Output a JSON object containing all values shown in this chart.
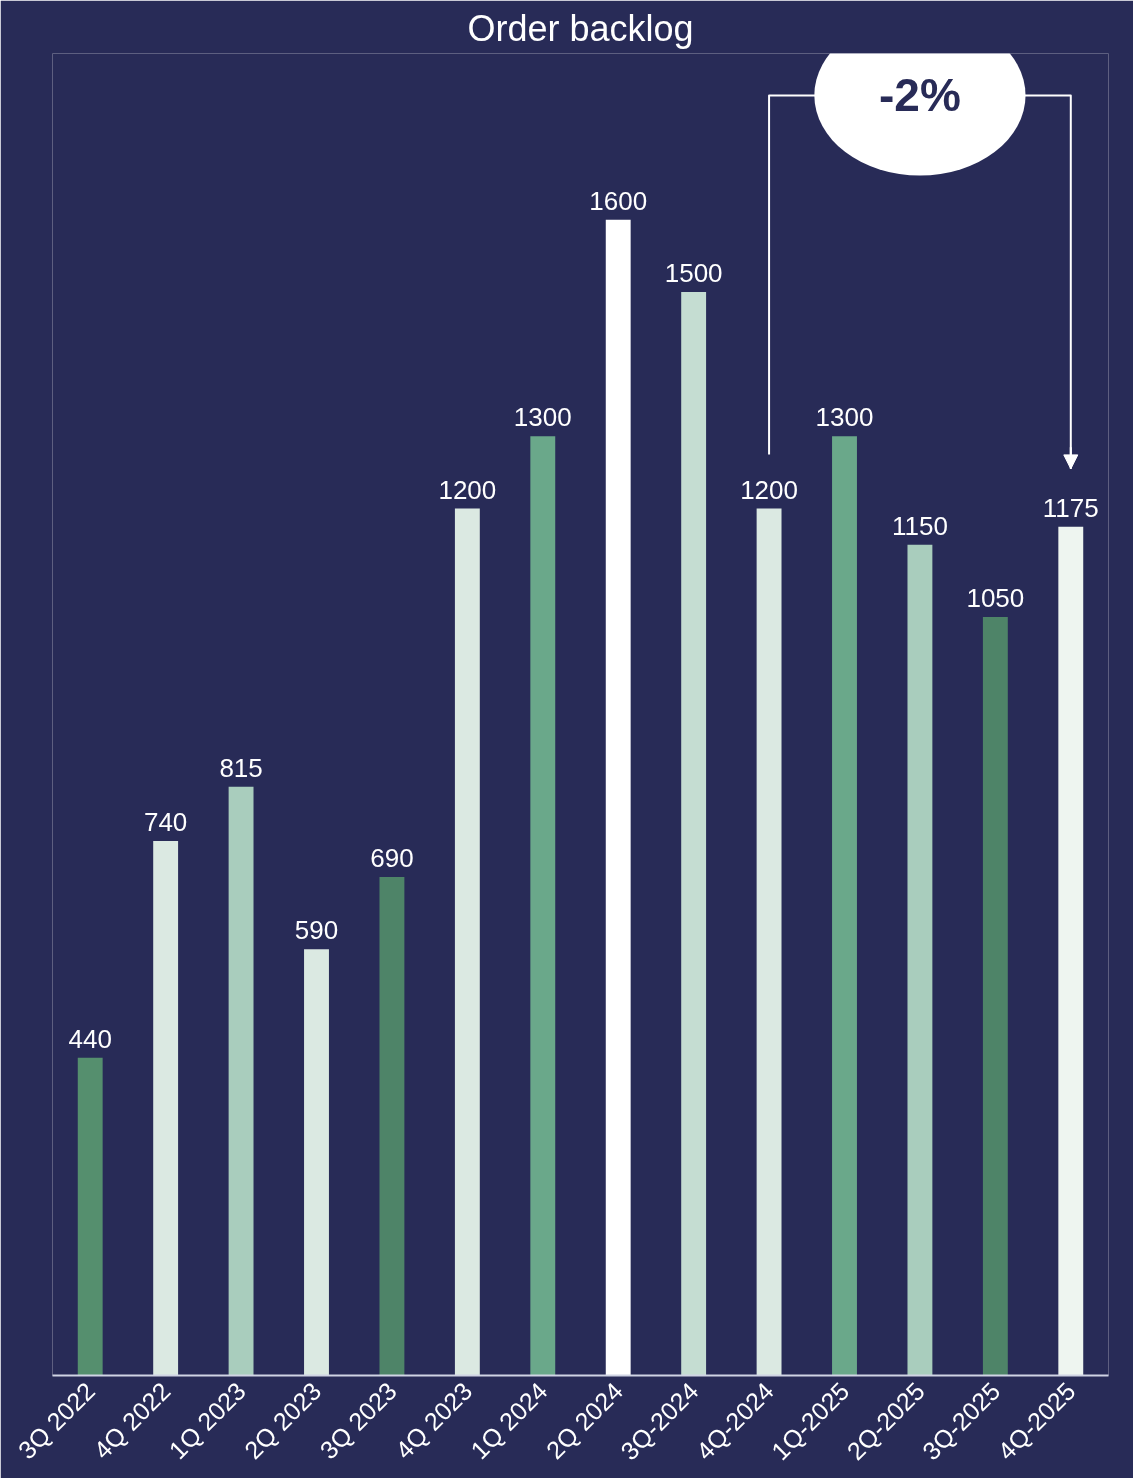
{
  "chart_data": {
    "type": "bar",
    "title": "Order backlog",
    "categories": [
      "3Q 2022",
      "4Q 2022",
      "1Q 2023",
      "2Q 2023",
      "3Q 2023",
      "4Q 2023",
      "1Q 2024",
      "2Q 2024",
      "3Q-2024",
      "4Q-2024",
      "1Q-2025",
      "2Q-2025",
      "3Q-2025",
      "4Q-2025"
    ],
    "values": [
      440,
      740,
      815,
      590,
      690,
      1200,
      1300,
      1600,
      1500,
      1200,
      1300,
      1150,
      1050,
      1175
    ],
    "colors": [
      "#558f6e",
      "#dbe9e2",
      "#a9cdbd",
      "#dbe9e2",
      "#4e8468",
      "#dbe9e2",
      "#6aa88a",
      "#ffffff",
      "#c5ddd2",
      "#dbe9e2",
      "#6aa88a",
      "#a9cdbd",
      "#4e8468",
      "#eef5f0"
    ],
    "ylim": [
      0,
      1830
    ],
    "tick_labels": "x",
    "data_labels": true,
    "grid": false,
    "annotations": [
      "-2%"
    ]
  }
}
